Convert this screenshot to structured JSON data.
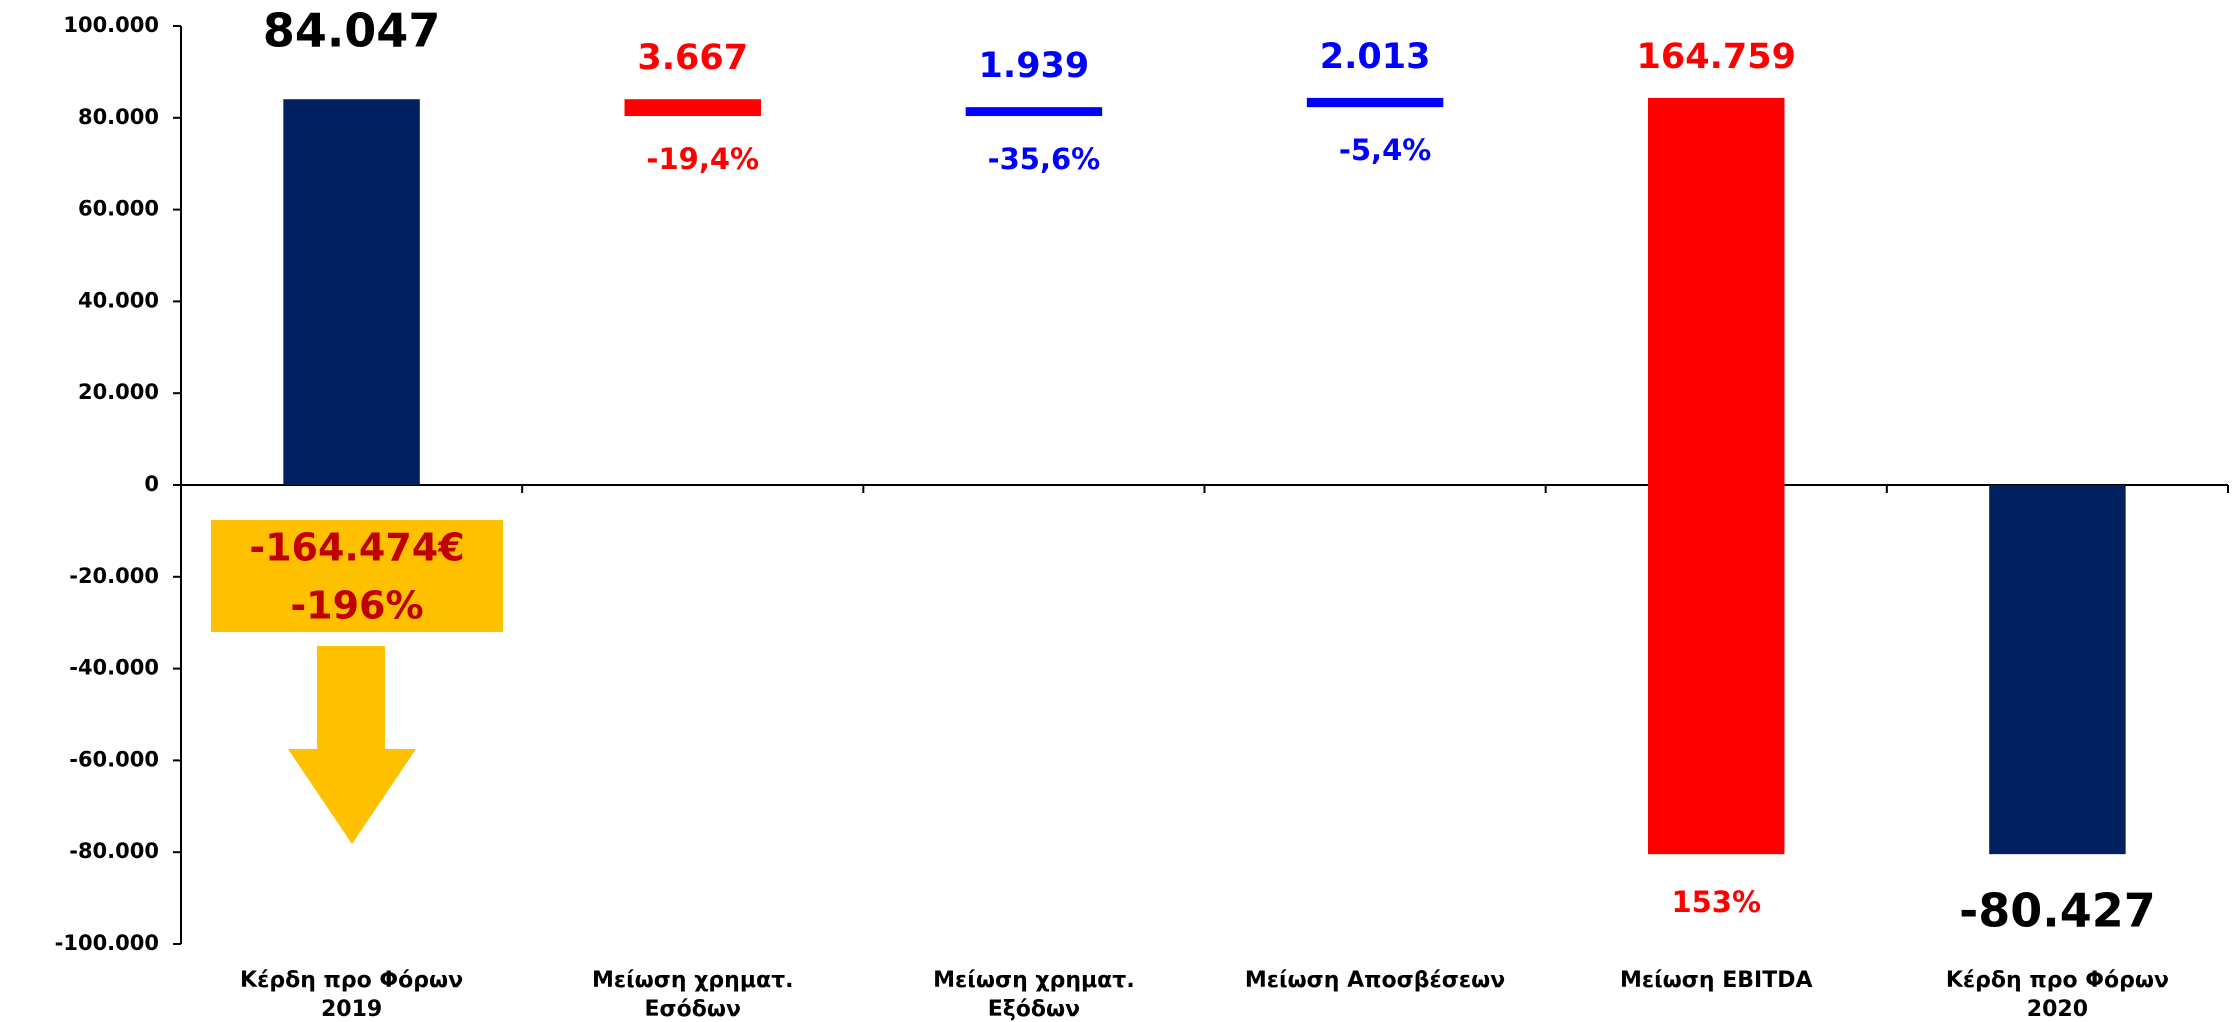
{
  "chart_data": {
    "type": "waterfall",
    "categories": [
      [
        "Κέρδη προ Φόρων",
        "2019"
      ],
      [
        "Μείωση χρηματ.",
        "Εσόδων"
      ],
      [
        "Μείωση χρηματ.",
        "Εξόδων"
      ],
      [
        "Μείωση Αποσβέσεων"
      ],
      [
        "Μείωση EBITDA"
      ],
      [
        "Κέρδη προ Φόρων",
        "2020"
      ]
    ],
    "values": [
      84047,
      -3667,
      1939,
      2013,
      -164759,
      -80427
    ],
    "value_labels": [
      "84.047",
      "3.667",
      "1.939",
      "2.013",
      "164.759",
      "-80.427"
    ],
    "percent_labels": [
      null,
      "-19,4%",
      "-35,6%",
      "-5,4%",
      "153%",
      null
    ],
    "colors": [
      "#002060",
      "#ff0000",
      "#0000ff",
      "#0000ff",
      "#ff0000",
      "#002060"
    ],
    "label_colors": [
      "#000000",
      "#ff0000",
      "#0000ff",
      "#0000ff",
      "#ff0000",
      "#000000"
    ],
    "callout": [
      "-164.474€",
      "-196%"
    ],
    "ylim": [
      -100000,
      100000
    ],
    "yticks": [
      {
        "value": -100000,
        "label": "-100.000"
      },
      {
        "value": -80000,
        "label": "-80.000"
      },
      {
        "value": -60000,
        "label": "-60.000"
      },
      {
        "value": -40000,
        "label": "-40.000"
      },
      {
        "value": -20000,
        "label": "-20.000"
      },
      0,
      {
        "value": 20000,
        "label": "20.000"
      },
      {
        "value": 40000,
        "label": "40.000"
      },
      {
        "value": 60000,
        "label": "60.000"
      },
      {
        "value": 80000,
        "label": "80.000"
      },
      {
        "value": 100000,
        "label": "100.000"
      }
    ]
  }
}
